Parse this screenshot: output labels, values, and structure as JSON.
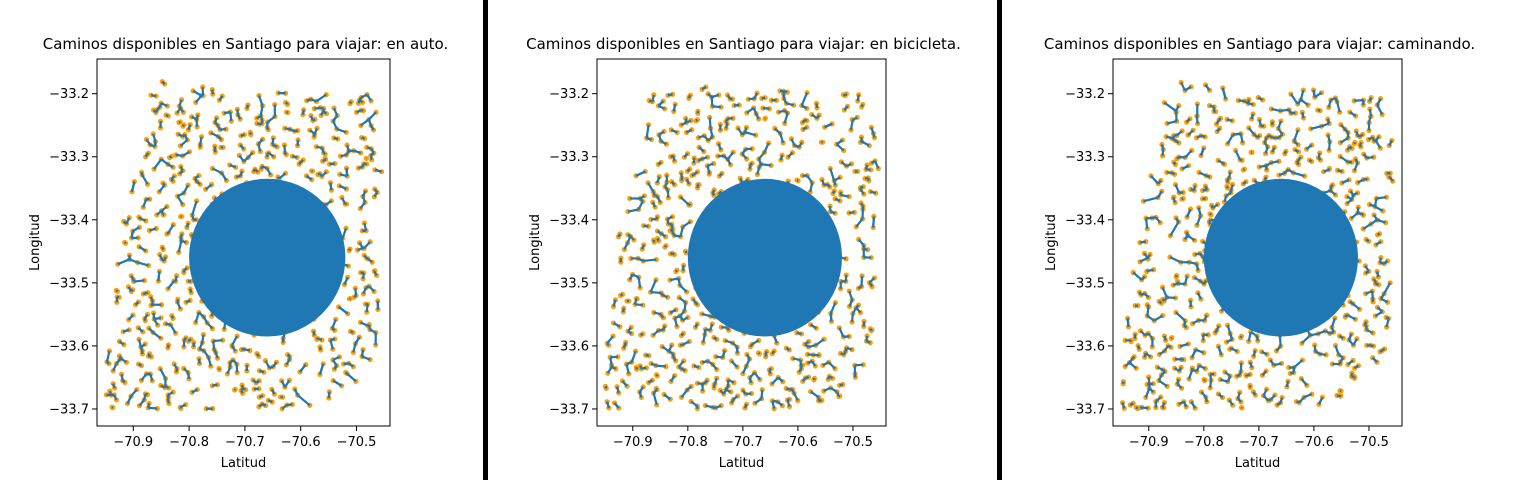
{
  "chart_data": [
    {
      "type": "scatter",
      "title": "Caminos disponibles en Santiago para viajar: en auto.",
      "xlabel": "Latitud",
      "ylabel": "Longitud",
      "xlim": [
        -70.965,
        -70.44
      ],
      "ylim": [
        -33.727,
        -33.145
      ],
      "xticks": [
        -70.9,
        -70.8,
        -70.7,
        -70.6,
        -70.5
      ],
      "xtick_labels": [
        "−70.9",
        "−70.8",
        "−70.7",
        "−70.6",
        "−70.5"
      ],
      "yticks": [
        -33.2,
        -33.3,
        -33.4,
        -33.5,
        -33.6,
        -33.7
      ],
      "ytick_labels": [
        "−33.2",
        "−33.3",
        "−33.4",
        "−33.5",
        "−33.6",
        "−33.7"
      ],
      "grid": false,
      "series": [
        {
          "kind": "lines",
          "color": "#1f77b4",
          "seed": 11
        },
        {
          "kind": "points",
          "color": "#ff9f0a",
          "seed": 11
        }
      ]
    },
    {
      "type": "scatter",
      "title": "Caminos disponibles en Santiago para viajar: en bicicleta.",
      "xlabel": "Latitud",
      "ylabel": "Longitud",
      "xlim": [
        -70.965,
        -70.44
      ],
      "ylim": [
        -33.727,
        -33.145
      ],
      "xticks": [
        -70.9,
        -70.8,
        -70.7,
        -70.6,
        -70.5
      ],
      "xtick_labels": [
        "−70.9",
        "−70.8",
        "−70.7",
        "−70.6",
        "−70.5"
      ],
      "yticks": [
        -33.2,
        -33.3,
        -33.4,
        -33.5,
        -33.6,
        -33.7
      ],
      "ytick_labels": [
        "−33.2",
        "−33.3",
        "−33.4",
        "−33.5",
        "−33.6",
        "−33.7"
      ],
      "grid": false,
      "series": [
        {
          "kind": "lines",
          "color": "#1f77b4",
          "seed": 23
        },
        {
          "kind": "points",
          "color": "#ff9f0a",
          "seed": 23
        }
      ]
    },
    {
      "type": "scatter",
      "title": "Caminos disponibles en Santiago para viajar: caminando.",
      "xlabel": "Latitud",
      "ylabel": "Longitud",
      "xlim": [
        -70.965,
        -70.44
      ],
      "ylim": [
        -33.727,
        -33.145
      ],
      "xticks": [
        -70.9,
        -70.8,
        -70.7,
        -70.6,
        -70.5
      ],
      "xtick_labels": [
        "−70.9",
        "−70.8",
        "−70.7",
        "−70.6",
        "−70.5"
      ],
      "yticks": [
        -33.2,
        -33.3,
        -33.4,
        -33.5,
        -33.6,
        -33.7
      ],
      "ytick_labels": [
        "−33.2",
        "−33.3",
        "−33.4",
        "−33.5",
        "−33.6",
        "−33.7"
      ],
      "grid": false,
      "series": [
        {
          "kind": "lines",
          "color": "#1f77b4",
          "seed": 37
        },
        {
          "kind": "points",
          "color": "#ff9f0a",
          "seed": 37
        }
      ]
    }
  ],
  "colors": {
    "divider": "#000000",
    "road_line": "#1f77b4",
    "node_point": "#ff9f0a"
  }
}
